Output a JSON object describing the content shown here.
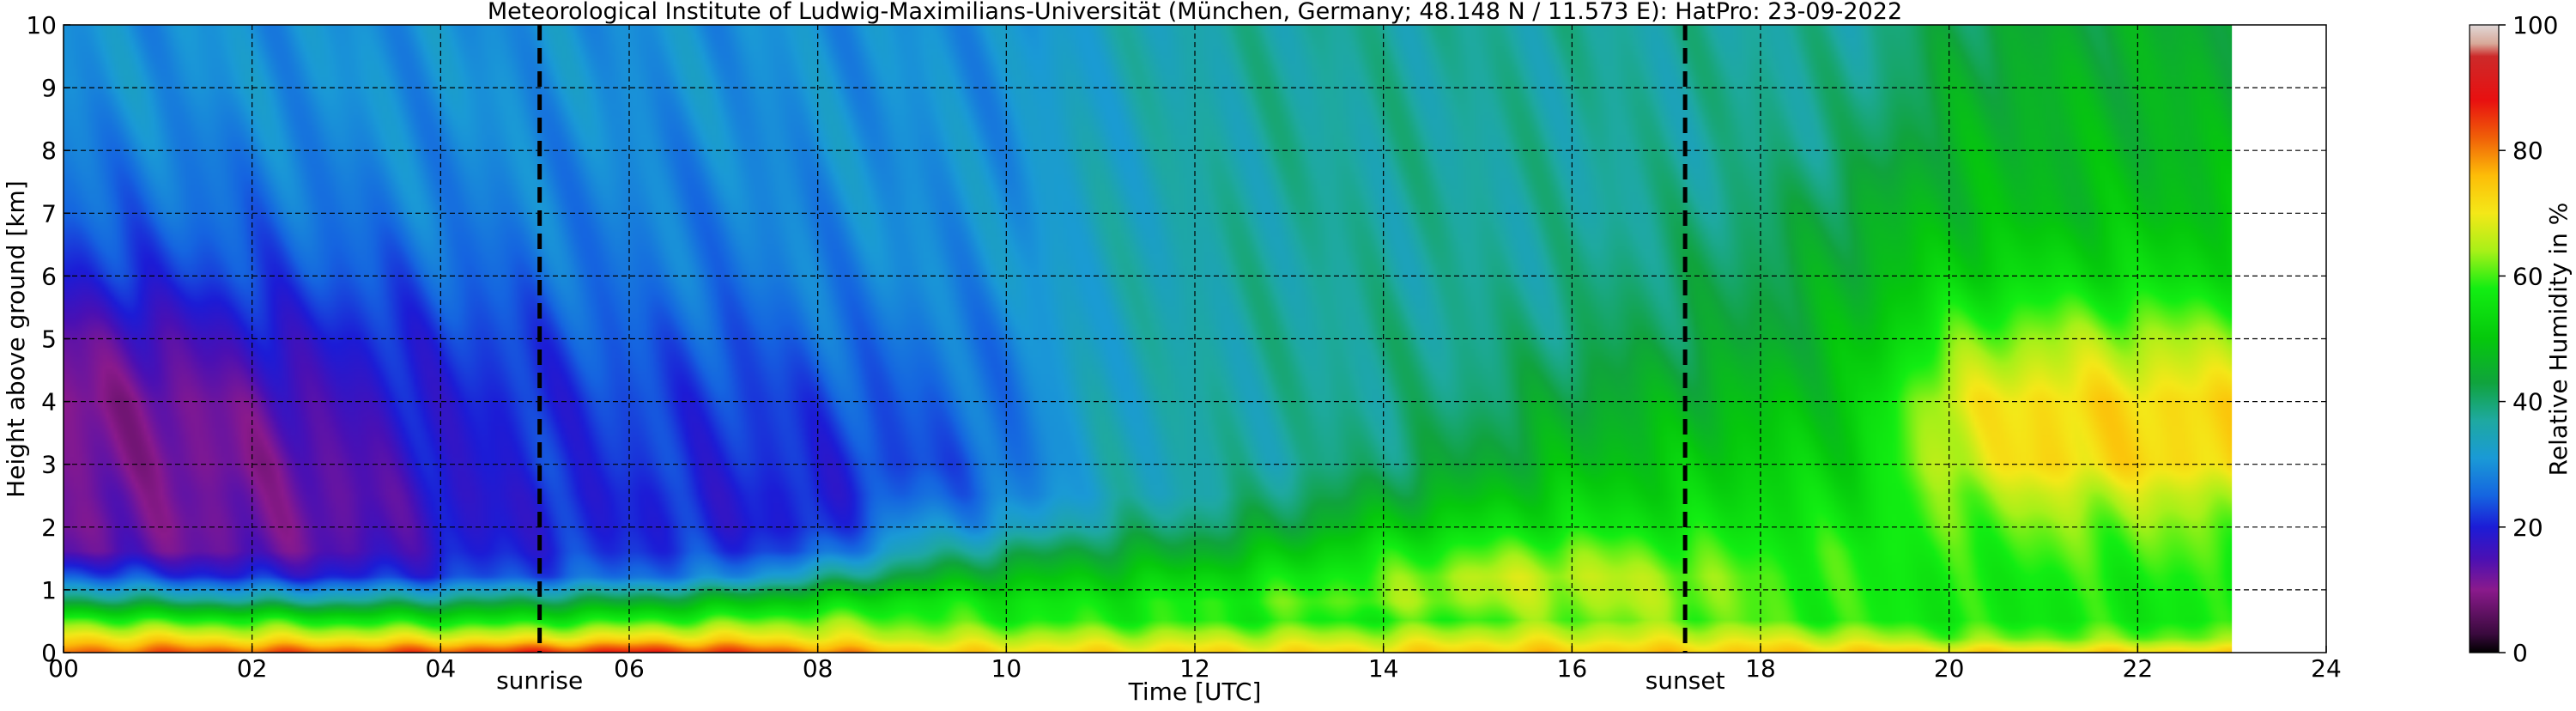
{
  "chart_data": {
    "type": "heatmap",
    "title": "Meteorological Institute of Ludwig-Maximilians-Universität (München, Germany; 48.148 N / 11.573 E):    HatPro: 23-09-2022",
    "xlabel": "Time [UTC]",
    "ylabel": "Height above ground [km]",
    "xlim": [
      0,
      24
    ],
    "ylim": [
      0,
      10
    ],
    "data_end_time": 23,
    "x_ticks": [
      0,
      2,
      4,
      6,
      8,
      10,
      12,
      14,
      16,
      18,
      20,
      22,
      24
    ],
    "x_tick_labels": [
      "00",
      "02",
      "04",
      "06",
      "08",
      "10",
      "12",
      "14",
      "16",
      "18",
      "20",
      "22",
      "24"
    ],
    "y_ticks": [
      0,
      1,
      2,
      3,
      4,
      5,
      6,
      7,
      8,
      9,
      10
    ],
    "y_tick_labels": [
      "0",
      "1",
      "2",
      "3",
      "4",
      "5",
      "6",
      "7",
      "8",
      "9",
      "10"
    ],
    "grid": true,
    "annotations": [
      {
        "label": "sunrise",
        "time": 5.05
      },
      {
        "label": "sunset",
        "time": 17.2
      }
    ],
    "colorbar": {
      "label": "Relative Humidity in %",
      "range": [
        0,
        100
      ],
      "ticks": [
        0,
        20,
        40,
        60,
        80,
        100
      ],
      "tick_labels": [
        "0",
        "20",
        "40",
        "60",
        "80",
        "100"
      ],
      "colors": [
        {
          "v": 0,
          "c": "#000000"
        },
        {
          "v": 3,
          "c": "#3a0a3e"
        },
        {
          "v": 10,
          "c": "#8a1a8c"
        },
        {
          "v": 15,
          "c": "#4a10b4"
        },
        {
          "v": 20,
          "c": "#1c1cd6"
        },
        {
          "v": 25,
          "c": "#1565e0"
        },
        {
          "v": 31,
          "c": "#1a9ad6"
        },
        {
          "v": 37,
          "c": "#1ea9a0"
        },
        {
          "v": 43,
          "c": "#10a33d"
        },
        {
          "v": 50,
          "c": "#05c80c"
        },
        {
          "v": 58,
          "c": "#12ee12"
        },
        {
          "v": 64,
          "c": "#a8f018"
        },
        {
          "v": 70,
          "c": "#f4e818"
        },
        {
          "v": 76,
          "c": "#fdbd08"
        },
        {
          "v": 82,
          "c": "#f06008"
        },
        {
          "v": 88,
          "c": "#e81010"
        },
        {
          "v": 95,
          "c": "#cc2a2a"
        },
        {
          "v": 97,
          "c": "#d8a898"
        },
        {
          "v": 100,
          "c": "#e0d8d8"
        }
      ]
    },
    "humidity_field": {
      "description_units": "relative humidity %, sampled on hour x km grid",
      "times": [
        0,
        1,
        2,
        3,
        4,
        5,
        6,
        7,
        8,
        9,
        10,
        11,
        12,
        13,
        14,
        15,
        16,
        17,
        18,
        19,
        20,
        21,
        22,
        23
      ],
      "heights": [
        0,
        0.2,
        0.5,
        0.8,
        1.2,
        1.6,
        2.0,
        2.5,
        3.0,
        4.0,
        5.0,
        6.0,
        7.0,
        8.0,
        9.0,
        10.0
      ],
      "values": [
        [
          80,
          72,
          60,
          42,
          25,
          14,
          12,
          12,
          11,
          10,
          13,
          20,
          25,
          28,
          30,
          30
        ],
        [
          82,
          72,
          58,
          40,
          22,
          13,
          12,
          12,
          11,
          11,
          15,
          22,
          26,
          28,
          30,
          30
        ],
        [
          82,
          70,
          58,
          38,
          20,
          13,
          12,
          12,
          11,
          13,
          18,
          23,
          26,
          28,
          30,
          30
        ],
        [
          82,
          70,
          56,
          38,
          20,
          14,
          13,
          13,
          14,
          17,
          20,
          24,
          27,
          29,
          30,
          30
        ],
        [
          83,
          70,
          56,
          40,
          22,
          19,
          18,
          18,
          19,
          20,
          22,
          25,
          28,
          29,
          30,
          30
        ],
        [
          85,
          70,
          56,
          42,
          24,
          21,
          20,
          20,
          21,
          21,
          23,
          26,
          28,
          29,
          30,
          30
        ],
        [
          86,
          72,
          58,
          44,
          26,
          22,
          21,
          21,
          22,
          23,
          25,
          27,
          28,
          29,
          30,
          30
        ],
        [
          84,
          72,
          60,
          48,
          28,
          22,
          20,
          20,
          21,
          22,
          24,
          27,
          28,
          29,
          30,
          30
        ],
        [
          80,
          70,
          62,
          52,
          36,
          24,
          20,
          20,
          21,
          23,
          26,
          28,
          29,
          30,
          30,
          30
        ],
        [
          74,
          66,
          60,
          56,
          44,
          35,
          30,
          25,
          23,
          25,
          27,
          29,
          30,
          30,
          30,
          30
        ],
        [
          72,
          66,
          58,
          56,
          48,
          40,
          31,
          27,
          26,
          27,
          28,
          30,
          30,
          30,
          30,
          30
        ],
        [
          72,
          66,
          58,
          56,
          50,
          44,
          38,
          34,
          34,
          34,
          34,
          34,
          34,
          34,
          34,
          34
        ],
        [
          72,
          66,
          58,
          58,
          52,
          45,
          40,
          36,
          36,
          36,
          36,
          36,
          36,
          36,
          36,
          36
        ],
        [
          72,
          66,
          58,
          60,
          56,
          50,
          44,
          40,
          37,
          37,
          37,
          37,
          37,
          37,
          37,
          37
        ],
        [
          72,
          66,
          58,
          62,
          60,
          56,
          50,
          44,
          40,
          38,
          38,
          37,
          37,
          37,
          37,
          37
        ],
        [
          74,
          68,
          60,
          64,
          66,
          60,
          54,
          48,
          44,
          40,
          38,
          37,
          37,
          37,
          37,
          37
        ],
        [
          74,
          68,
          62,
          64,
          66,
          62,
          56,
          52,
          48,
          44,
          40,
          38,
          37,
          37,
          37,
          37
        ],
        [
          74,
          68,
          62,
          64,
          64,
          60,
          56,
          52,
          50,
          46,
          42,
          40,
          38,
          37,
          37,
          37
        ],
        [
          74,
          68,
          60,
          60,
          60,
          58,
          56,
          54,
          52,
          48,
          44,
          42,
          40,
          38,
          38,
          37
        ],
        [
          74,
          66,
          58,
          58,
          58,
          58,
          56,
          54,
          52,
          50,
          48,
          46,
          44,
          40,
          38,
          37
        ],
        [
          72,
          62,
          57,
          57,
          57,
          58,
          60,
          62,
          66,
          68,
          60,
          52,
          48,
          46,
          44,
          42
        ],
        [
          72,
          62,
          57,
          57,
          58,
          60,
          62,
          66,
          72,
          72,
          64,
          54,
          48,
          47,
          46,
          44
        ],
        [
          72,
          62,
          57,
          57,
          58,
          60,
          62,
          66,
          72,
          72,
          64,
          54,
          49,
          47,
          46,
          45
        ],
        [
          72,
          62,
          57,
          57,
          58,
          60,
          62,
          66,
          72,
          72,
          64,
          54,
          49,
          47,
          46,
          45
        ]
      ]
    }
  }
}
